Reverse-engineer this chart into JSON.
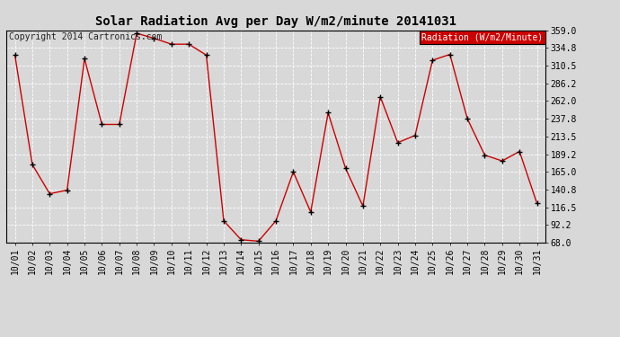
{
  "title": "Solar Radiation Avg per Day W/m2/minute 20141031",
  "copyright": "Copyright 2014 Cartronics.com",
  "legend_label": "Radiation (W/m2/Minute)",
  "dates": [
    "10/01",
    "10/02",
    "10/03",
    "10/04",
    "10/05",
    "10/06",
    "10/07",
    "10/08",
    "10/09",
    "10/10",
    "10/11",
    "10/12",
    "10/13",
    "10/14",
    "10/15",
    "10/16",
    "10/17",
    "10/18",
    "10/19",
    "10/20",
    "10/21",
    "10/22",
    "10/23",
    "10/24",
    "10/25",
    "10/26",
    "10/27",
    "10/28",
    "10/29",
    "10/30",
    "10/31"
  ],
  "values": [
    325,
    175,
    135,
    140,
    320,
    230,
    230,
    355,
    348,
    340,
    340,
    325,
    98,
    72,
    70,
    98,
    165,
    110,
    246,
    170,
    118,
    268,
    205,
    215,
    318,
    326,
    238,
    188,
    180,
    193,
    122
  ],
  "line_color": "#cc0000",
  "marker_color": "#000000",
  "bg_color": "#d8d8d8",
  "plot_bg_color": "#d8d8d8",
  "grid_color": "#ffffff",
  "yticks": [
    68.0,
    92.2,
    116.5,
    140.8,
    165.0,
    189.2,
    213.5,
    237.8,
    262.0,
    286.2,
    310.5,
    334.8,
    359.0
  ],
  "ylim": [
    68.0,
    359.0
  ],
  "legend_bg": "#cc0000",
  "legend_text_color": "#ffffff",
  "title_fontsize": 10,
  "tick_fontsize": 7,
  "copyright_fontsize": 7
}
